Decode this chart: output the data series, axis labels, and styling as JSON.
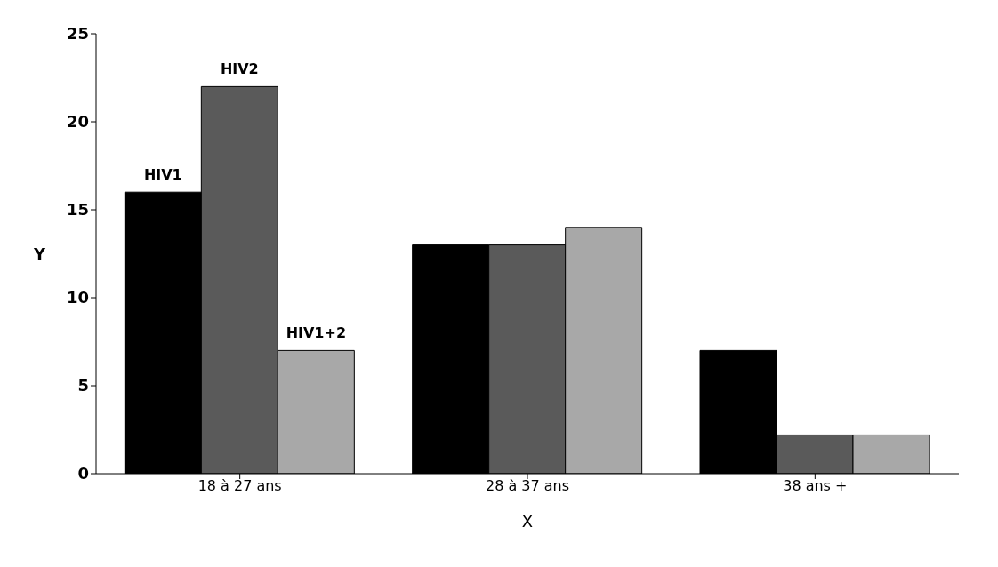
{
  "chart_data": {
    "type": "bar",
    "xlabel": "X",
    "ylabel": "Y",
    "categories": [
      "18 à 27 ans",
      "28 à 37 ans",
      "38 ans +"
    ],
    "series": [
      {
        "name": "HIV1",
        "color": "#000000",
        "values": [
          16,
          13,
          7
        ]
      },
      {
        "name": "HIV2",
        "color": "#5a5a5a",
        "values": [
          22,
          13,
          2.2
        ]
      },
      {
        "name": "HIV1+2",
        "color": "#a8a8a8",
        "values": [
          7,
          14,
          2.2
        ]
      }
    ],
    "ylim": [
      0,
      25
    ],
    "yticks": [
      0,
      5,
      10,
      15,
      20,
      25
    ]
  }
}
